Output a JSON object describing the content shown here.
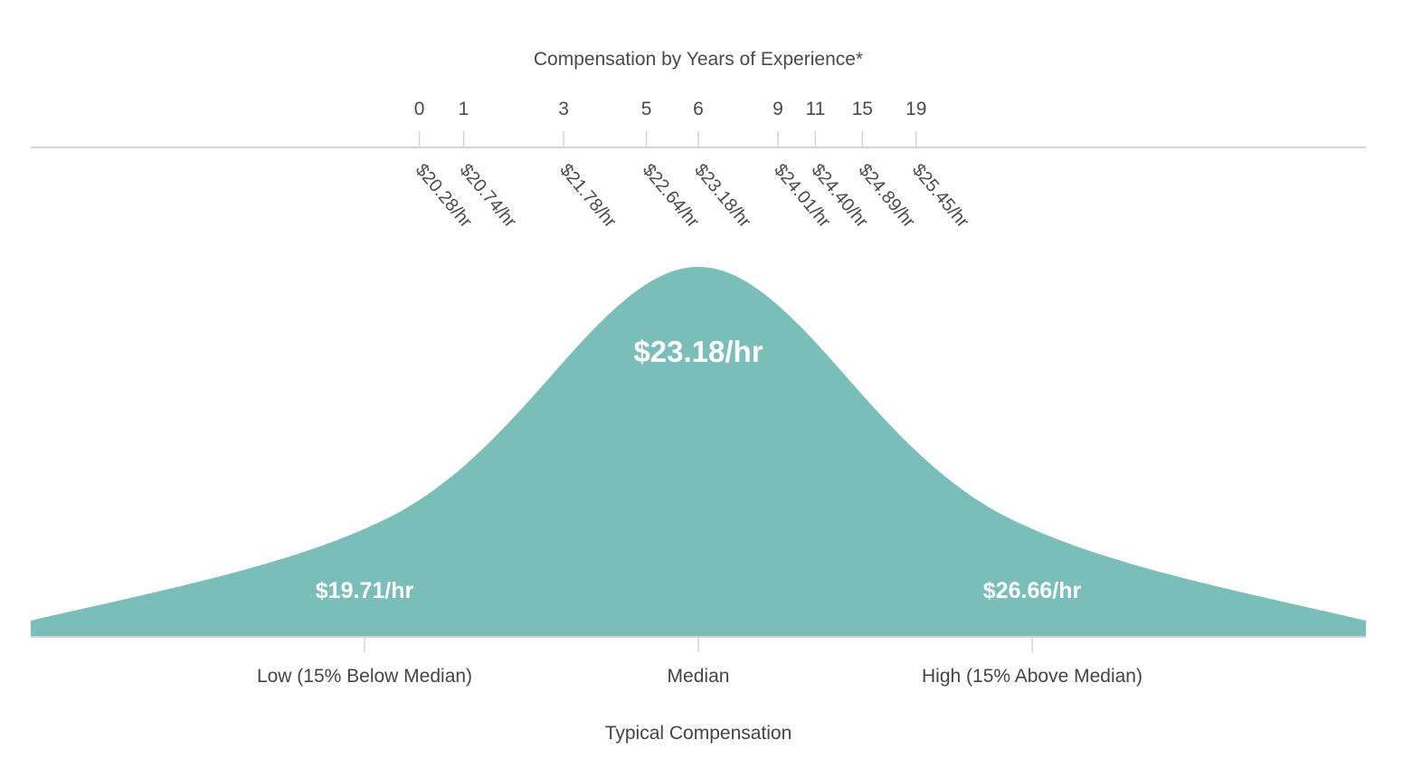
{
  "chart_data": {
    "type": "area",
    "title": "Compensation by Years of Experience*",
    "xlabel": "Typical Compensation",
    "color": "#7bbdb8",
    "axis_color": "#d4d4d4",
    "experience": [
      {
        "years": "0",
        "rate": "$20.28/hr",
        "value": 20.28
      },
      {
        "years": "1",
        "rate": "$20.74/hr",
        "value": 20.74
      },
      {
        "years": "3",
        "rate": "$21.78/hr",
        "value": 21.78
      },
      {
        "years": "5",
        "rate": "$22.64/hr",
        "value": 22.64
      },
      {
        "years": "6",
        "rate": "$23.18/hr",
        "value": 23.18
      },
      {
        "years": "9",
        "rate": "$24.01/hr",
        "value": 24.01
      },
      {
        "years": "11",
        "rate": "$24.40/hr",
        "value": 24.4
      },
      {
        "years": "15",
        "rate": "$24.89/hr",
        "value": 24.89
      },
      {
        "years": "19",
        "rate": "$25.45/hr",
        "value": 25.45
      }
    ],
    "distribution": [
      {
        "label": "Low (15% Below Median)",
        "rate": "$19.71/hr",
        "value": 19.71
      },
      {
        "label": "Median",
        "rate": "$23.18/hr",
        "value": 23.18
      },
      {
        "label": "High (15% Above Median)",
        "rate": "$26.66/hr",
        "value": 26.66
      }
    ]
  }
}
